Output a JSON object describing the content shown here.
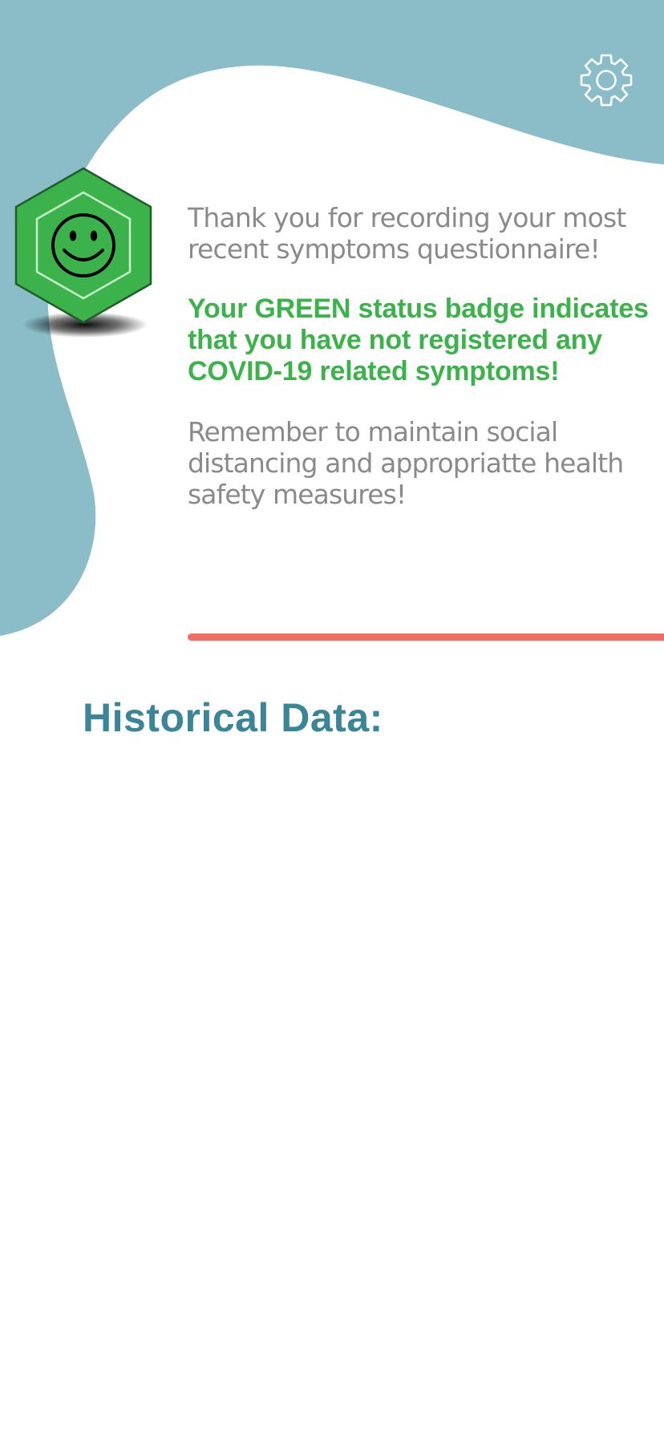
{
  "colors": {
    "background_blob": "#8bbdc9",
    "badge_green": "#3cb34a",
    "accent_divider": "#f36c64",
    "section_title": "#3a8597",
    "body_text": "#8a8a8a"
  },
  "header": {
    "settings_icon": "gear-icon"
  },
  "status": {
    "badge_icon": "smiley-face-icon",
    "badge_color": "GREEN"
  },
  "message": {
    "thanks": "Thank you for recording your most recent symptoms questionnaire!",
    "status": "Your GREEN status badge indicates that you have not registered any COVID-19 related symptoms!",
    "reminder": "Remember to maintain social distancing and appropriatte health safety measures!"
  },
  "history": {
    "title": "Historical Data:"
  }
}
